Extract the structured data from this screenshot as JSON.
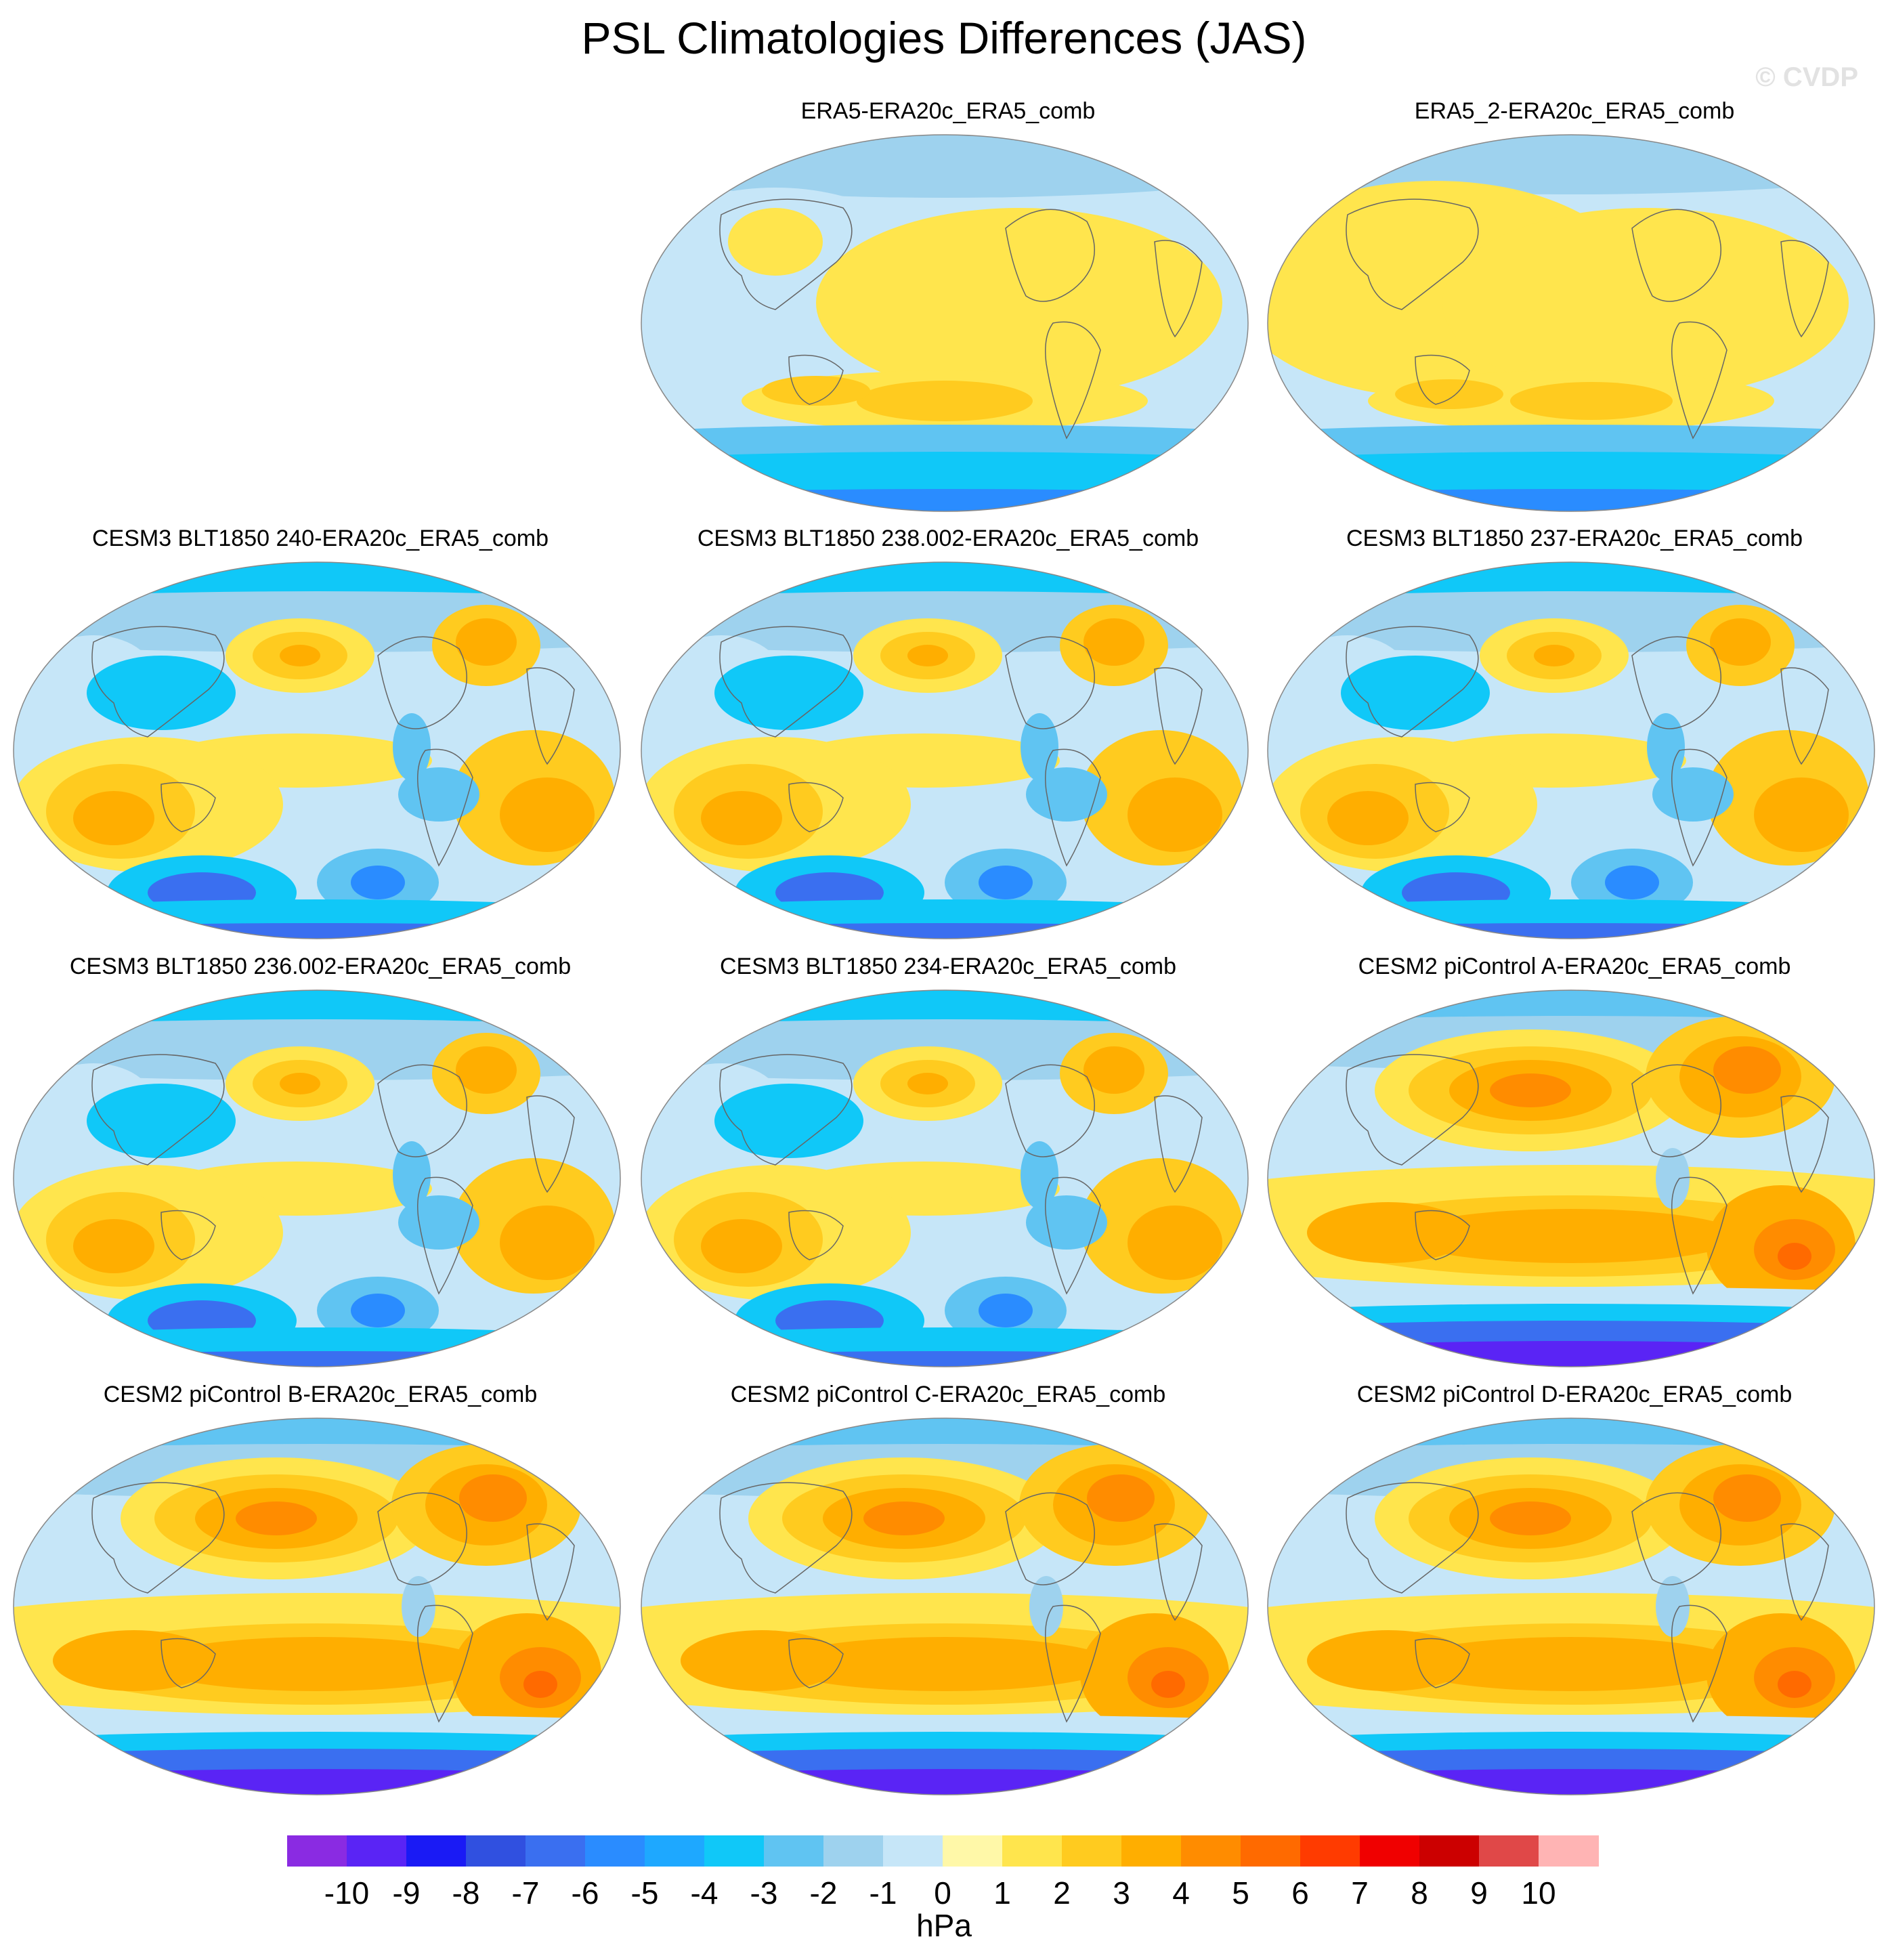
{
  "title": "PSL Climatologies Differences (JAS)",
  "watermark": "© CVDP",
  "panels": [
    {
      "label": "ERA5-ERA20c_ERA5_comb",
      "pattern": "era5"
    },
    {
      "label": "ERA5_2-ERA20c_ERA5_comb",
      "pattern": "era5b"
    },
    {
      "label": "CESM3 BLT1850 240-ERA20c_ERA5_comb",
      "pattern": "cesm3"
    },
    {
      "label": "CESM3 BLT1850 238.002-ERA20c_ERA5_comb",
      "pattern": "cesm3"
    },
    {
      "label": "CESM3 BLT1850 237-ERA20c_ERA5_comb",
      "pattern": "cesm3"
    },
    {
      "label": "CESM3 BLT1850 236.002-ERA20c_ERA5_comb",
      "pattern": "cesm3"
    },
    {
      "label": "CESM3 BLT1850 234-ERA20c_ERA5_comb",
      "pattern": "cesm3"
    },
    {
      "label": "CESM2 piControl A-ERA20c_ERA5_comb",
      "pattern": "cesm2"
    },
    {
      "label": "CESM2 piControl B-ERA20c_ERA5_comb",
      "pattern": "cesm2"
    },
    {
      "label": "CESM2 piControl C-ERA20c_ERA5_comb",
      "pattern": "cesm2"
    },
    {
      "label": "CESM2 piControl D-ERA20c_ERA5_comb",
      "pattern": "cesm2"
    }
  ],
  "colorbar": {
    "colors": [
      "#8a2be2",
      "#5a24f5",
      "#1a1af5",
      "#3050e0",
      "#3a6ff0",
      "#2a8cff",
      "#1ea8ff",
      "#10c8f8",
      "#60c4f2",
      "#9ed2ee",
      "#c6e6f8",
      "#fff8a8",
      "#ffe54d",
      "#ffcb1f",
      "#ffae00",
      "#ff8c00",
      "#ff6a00",
      "#ff3b00",
      "#f00000",
      "#cc0000",
      "#e04848",
      "#ffb4b4"
    ],
    "tick_labels": [
      "-10",
      "-9",
      "-8",
      "-7",
      "-6",
      "-5",
      "-4",
      "-3",
      "-2",
      "-1",
      "0",
      "1",
      "2",
      "3",
      "4",
      "5",
      "6",
      "7",
      "8",
      "9",
      "10"
    ],
    "units": "hPa"
  }
}
